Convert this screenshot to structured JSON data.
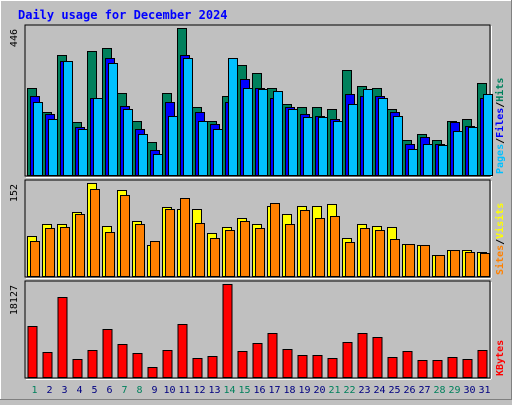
{
  "chart_data": {
    "type": "bar",
    "title": "Daily usage for December 2024",
    "days": [
      "1",
      "2",
      "3",
      "4",
      "5",
      "6",
      "7",
      "8",
      "9",
      "10",
      "11",
      "12",
      "13",
      "14",
      "15",
      "16",
      "17",
      "18",
      "19",
      "20",
      "21",
      "22",
      "23",
      "24",
      "25",
      "26",
      "27",
      "28",
      "29",
      "30",
      "31"
    ],
    "weekend_days": [
      1,
      7,
      8,
      14,
      15,
      21,
      22,
      28,
      29
    ],
    "colors": {
      "background": "#c0c0c0",
      "panel": "#c0c0c0",
      "title": "#0000ff",
      "hits": "#00805c",
      "files": "#0000ff",
      "pages": "#00c0ff",
      "visits": "#ffff00",
      "sites": "#ff8000",
      "kbytes": "#ff0000",
      "weekday_label": "#000080",
      "weekend_label": "#00805c"
    },
    "panels": [
      {
        "name": "hits-files-pages",
        "max_label": "446",
        "ylim": [
          0,
          446
        ],
        "legend": [
          {
            "text": "Pages",
            "color": "#00c0ff"
          },
          {
            "text": "/",
            "color": "#000000"
          },
          {
            "text": "Files",
            "color": "#0000ff"
          },
          {
            "text": "/",
            "color": "#000000"
          },
          {
            "text": "Hits",
            "color": "#00805c"
          }
        ],
        "series": [
          {
            "name": "Hits",
            "color": "#00805c",
            "values": [
              265,
              190,
              365,
              160,
              375,
              385,
              250,
              165,
              100,
              250,
              446,
              205,
              165,
              240,
              335,
              310,
              265,
              215,
              205,
              205,
              200,
              320,
              270,
              265,
              200,
              105,
              125,
              105,
              165,
              170,
              280
            ]
          },
          {
            "name": "Files",
            "color": "#0000ff",
            "values": [
              240,
              185,
              345,
              145,
              235,
              355,
              210,
              140,
              75,
              220,
              365,
              190,
              155,
              220,
              290,
              265,
              235,
              205,
              185,
              180,
              170,
              245,
              240,
              240,
              190,
              95,
              115,
              95,
              160,
              150,
              235
            ]
          },
          {
            "name": "Pages",
            "color": "#00c0ff",
            "values": [
              220,
              170,
              345,
              140,
              235,
              340,
              200,
              125,
              65,
              180,
              355,
              165,
              140,
              355,
              265,
              260,
              255,
              200,
              175,
              175,
              165,
              215,
              260,
              235,
              180,
              80,
              95,
              90,
              135,
              145,
              245
            ]
          }
        ]
      },
      {
        "name": "visits-sites",
        "max_label": "152",
        "ylim": [
          0,
          152
        ],
        "legend": [
          {
            "text": "Sites",
            "color": "#ff8000"
          },
          {
            "text": "/",
            "color": "#000000"
          },
          {
            "text": "Visits",
            "color": "#ffff00"
          }
        ],
        "series": [
          {
            "name": "Visits",
            "color": "#ffff00",
            "values": [
              65,
              85,
              85,
              105,
              152,
              82,
              140,
              90,
              50,
              112,
              110,
              110,
              70,
              80,
              94,
              85,
              115,
              102,
              115,
              115,
              118,
              62,
              85,
              82,
              80,
              52,
              50,
              34,
              42,
              43,
              40
            ]
          },
          {
            "name": "Sites",
            "color": "#ff8000",
            "values": [
              58,
              78,
              80,
              102,
              142,
              72,
              132,
              85,
              58,
              110,
              128,
              86,
              62,
              75,
              90,
              78,
              120,
              85,
              108,
              95,
              98,
              55,
              78,
              75,
              60,
              52,
              50,
              34,
              42,
              40,
              38
            ]
          }
        ]
      },
      {
        "name": "kbytes",
        "max_label": "18127",
        "ylim": [
          0,
          18127
        ],
        "legend": [
          {
            "text": "KBytes",
            "color": "#ff0000"
          }
        ],
        "series": [
          {
            "name": "KBytes",
            "color": "#ff0000",
            "values": [
              9980,
              4970,
              15560,
              3450,
              5320,
              9280,
              6400,
              4590,
              1900,
              5170,
              10330,
              3650,
              4010,
              18127,
              5090,
              6610,
              8660,
              5400,
              4240,
              4290,
              3760,
              6790,
              8620,
              7840,
              3850,
              5130,
              3250,
              3360,
              3850,
              3470,
              5230
            ]
          }
        ]
      }
    ]
  }
}
